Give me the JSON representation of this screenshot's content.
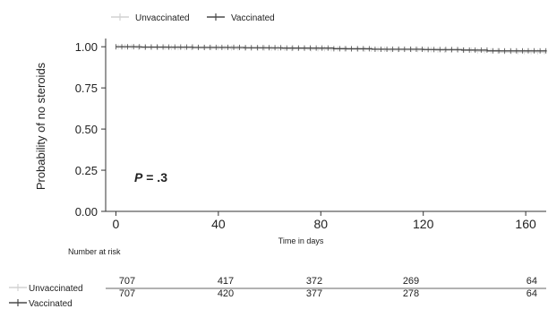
{
  "chart_data": {
    "type": "line",
    "title": "",
    "xlabel": "Time in days",
    "ylabel": "Probability of no steroids",
    "xlim": [
      -4,
      168
    ],
    "ylim": [
      0,
      1.05
    ],
    "x_ticks": [
      0,
      40,
      80,
      120,
      160
    ],
    "y_ticks": [
      0.0,
      0.25,
      0.5,
      0.75,
      1.0
    ],
    "y_tick_labels": [
      "0.00",
      "0.25",
      "0.50",
      "0.75",
      "1.00"
    ],
    "grid": false,
    "legend_position": "top",
    "annotation": "P = .3",
    "series": [
      {
        "name": "Unvaccinated",
        "color": "#d2d2d2",
        "step_points": [
          [
            0,
            1.0
          ],
          [
            8,
            0.997
          ],
          [
            20,
            0.995
          ],
          [
            45,
            0.993
          ],
          [
            60,
            0.99
          ],
          [
            75,
            0.988
          ],
          [
            90,
            0.985
          ],
          [
            105,
            0.983
          ],
          [
            125,
            0.98
          ],
          [
            140,
            0.975
          ],
          [
            150,
            0.97
          ],
          [
            168,
            0.968
          ]
        ]
      },
      {
        "name": "Vaccinated",
        "color": "#4a4a4a",
        "step_points": [
          [
            0,
            1.0
          ],
          [
            10,
            0.998
          ],
          [
            30,
            0.996
          ],
          [
            50,
            0.994
          ],
          [
            65,
            0.992
          ],
          [
            85,
            0.988
          ],
          [
            100,
            0.985
          ],
          [
            120,
            0.983
          ],
          [
            135,
            0.98
          ],
          [
            145,
            0.975
          ],
          [
            168,
            0.973
          ]
        ]
      }
    ],
    "risk_table": {
      "title": "Number at risk",
      "times": [
        0,
        40,
        80,
        120,
        160
      ],
      "rows": [
        {
          "name": "Unvaccinated",
          "values": [
            707,
            417,
            372,
            269,
            64
          ]
        },
        {
          "name": "Vaccinated",
          "values": [
            707,
            420,
            377,
            278,
            64
          ]
        }
      ]
    }
  }
}
